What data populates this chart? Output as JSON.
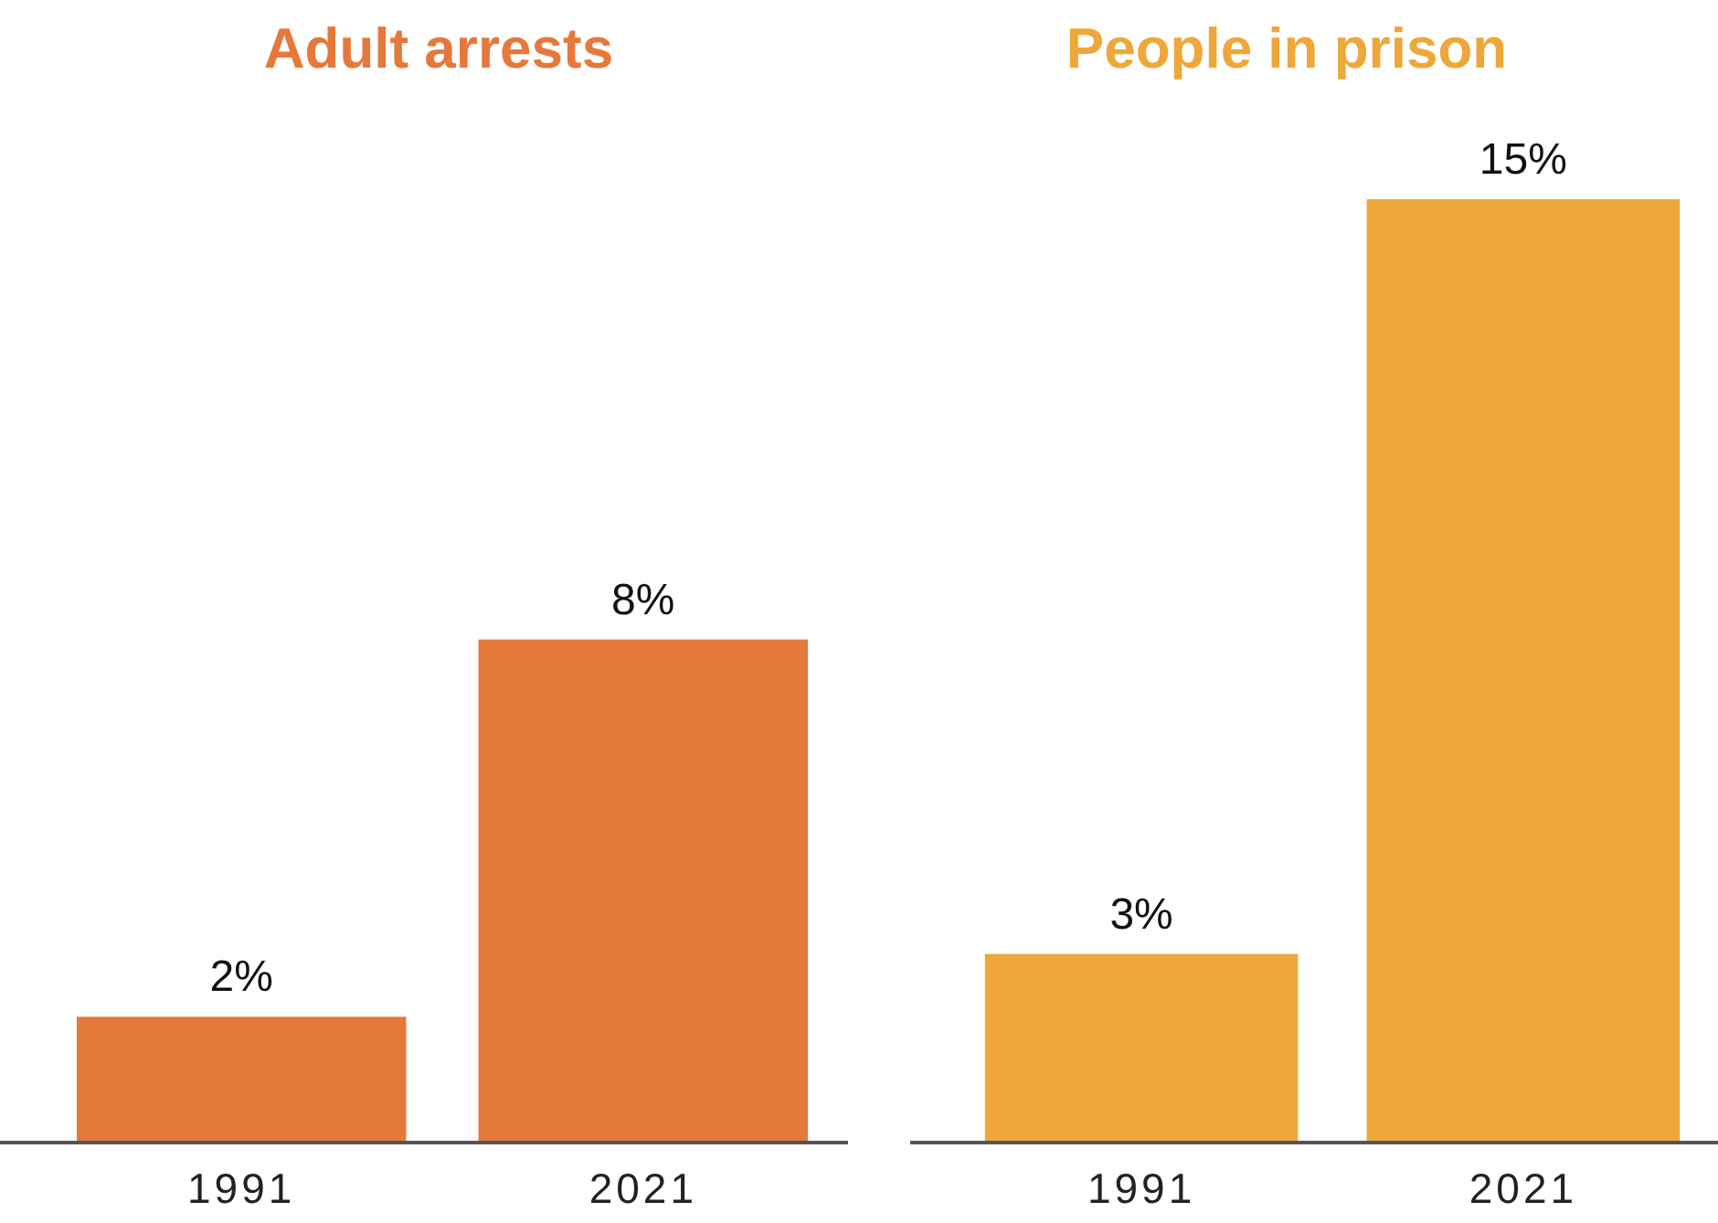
{
  "chart_data": [
    {
      "type": "bar",
      "title": "Adult arrests",
      "categories": [
        "1991",
        "2021"
      ],
      "values": [
        2,
        8
      ],
      "value_labels": [
        "2%",
        "8%"
      ],
      "color": "#e5793b"
    },
    {
      "type": "bar",
      "title": "People in prison",
      "categories": [
        "1991",
        "2021"
      ],
      "values": [
        3,
        15
      ],
      "value_labels": [
        "3%",
        "15%"
      ],
      "color": "#eea73a"
    }
  ]
}
